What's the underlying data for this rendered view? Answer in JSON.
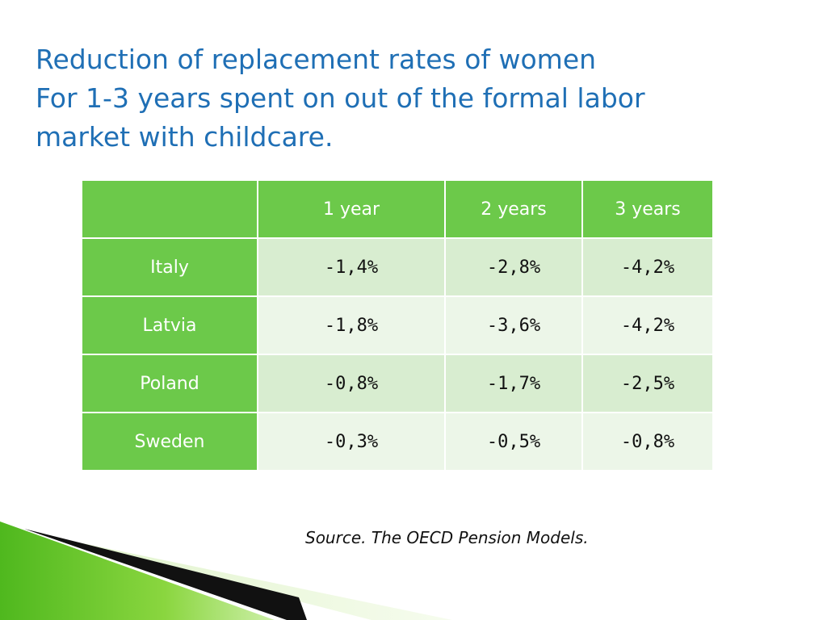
{
  "title": {
    "line1": "Reduction of replacement rates of women",
    "line2": "For 1-3 years spent on out of the formal labor",
    "line3": "market with childcare."
  },
  "table": {
    "headers": [
      "",
      "1 year",
      "2 years",
      "3 years"
    ],
    "rows": [
      {
        "country": "Italy",
        "values": [
          "-1,4%",
          "-2,8%",
          "-4,2%"
        ]
      },
      {
        "country": "Latvia",
        "values": [
          "-1,8%",
          "-3,6%",
          "-4,2%"
        ]
      },
      {
        "country": "Poland",
        "values": [
          "-0,8%",
          "-1,7%",
          "-2,5%"
        ]
      },
      {
        "country": "Sweden",
        "values": [
          "-0,3%",
          "-0,5%",
          "-0,8%"
        ]
      }
    ]
  },
  "source": "Source. The OECD Pension Models.",
  "colors": {
    "title": "#1F6FB5",
    "header_green": "#6CC94A",
    "row_light": "#D8EDD0",
    "row_lighter": "#ECF6E8"
  }
}
